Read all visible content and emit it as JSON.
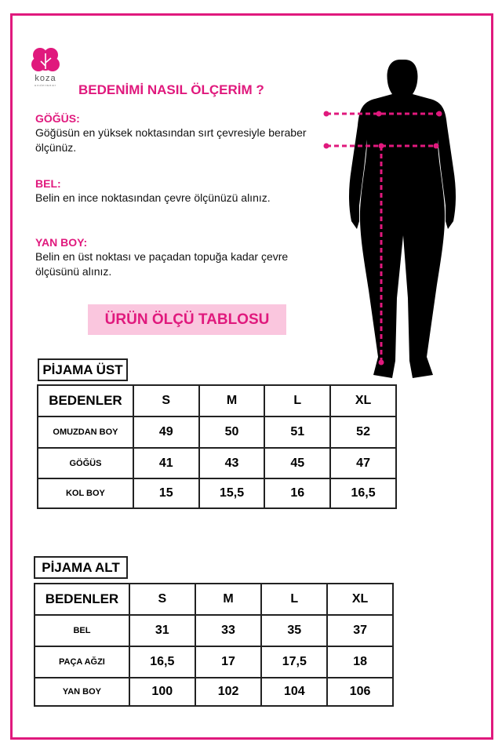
{
  "brand": {
    "logo_text": "koza",
    "logo_sub": "underwear",
    "color": "#e0197d"
  },
  "heading": "BEDENİMİ NASIL ÖLÇERİM ?",
  "sections": [
    {
      "title": "GÖĞÜS:",
      "body": "Göğüsün en yüksek noktasından sırt çevresiyle beraber ölçünüz."
    },
    {
      "title": "BEL:",
      "body": "Belin en ince noktasından çevre ölçünüzü alınız."
    },
    {
      "title": "YAN BOY:",
      "body": "Belin en üst noktası ve paçadan topuğa kadar çevre ölçüsünü alınız."
    }
  ],
  "banner": "ÜRÜN ÖLÇÜ TABLOSU",
  "tables": [
    {
      "title": "PİJAMA ÜST",
      "header": [
        "BEDENLER",
        "S",
        "M",
        "L",
        "XL"
      ],
      "rows": [
        [
          "OMUZDAN BOY",
          "49",
          "50",
          "51",
          "52"
        ],
        [
          "GÖĞÜS",
          "41",
          "43",
          "45",
          "47"
        ],
        [
          "KOL BOY",
          "15",
          "15,5",
          "16",
          "16,5"
        ]
      ]
    },
    {
      "title": "PİJAMA ALT",
      "header": [
        "BEDENLER",
        "S",
        "M",
        "L",
        "XL"
      ],
      "rows": [
        [
          "BEL",
          "31",
          "33",
          "35",
          "37"
        ],
        [
          "PAÇA AĞZI",
          "16,5",
          "17",
          "17,5",
          "18"
        ],
        [
          "YAN BOY",
          "100",
          "102",
          "104",
          "106"
        ]
      ]
    }
  ]
}
